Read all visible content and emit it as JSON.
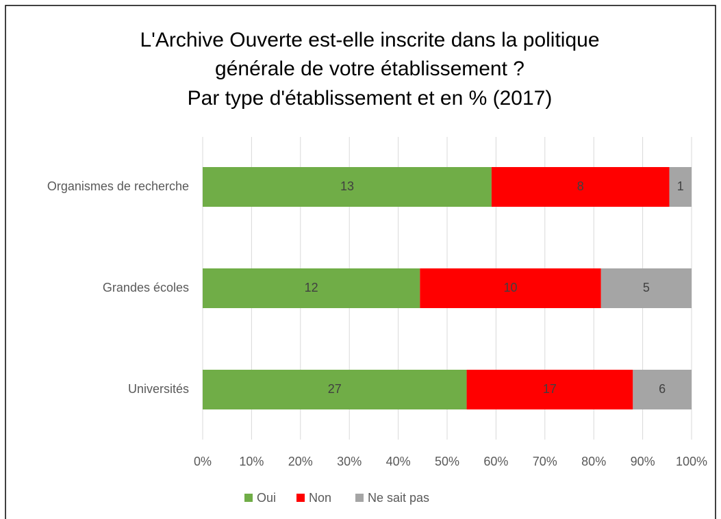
{
  "chart_data": {
    "type": "bar",
    "orientation": "horizontal",
    "stacking": "percent",
    "title": [
      "L'Archive Ouverte est-elle inscrite dans la politique",
      "générale de votre établissement ?",
      "Par type d'établissement et en % (2017)"
    ],
    "categories": [
      "Organismes de recherche",
      "Grandes écoles",
      "Universités"
    ],
    "series": [
      {
        "name": "Oui",
        "color": "#70ad47",
        "values": [
          13,
          12,
          27
        ]
      },
      {
        "name": "Non",
        "color": "#ff0000",
        "values": [
          8,
          10,
          17
        ]
      },
      {
        "name": "Ne sait pas",
        "color": "#a5a5a5",
        "values": [
          1,
          5,
          6
        ]
      }
    ],
    "xlim": [
      0,
      100
    ],
    "xticks": [
      {
        "value": 0,
        "label": "0%"
      },
      {
        "value": 10,
        "label": "10%"
      },
      {
        "value": 20,
        "label": "20%"
      },
      {
        "value": 30,
        "label": "30%"
      },
      {
        "value": 40,
        "label": "40%"
      },
      {
        "value": 50,
        "label": "50%"
      },
      {
        "value": 60,
        "label": "60%"
      },
      {
        "value": 70,
        "label": "70%"
      },
      {
        "value": 80,
        "label": "80%"
      },
      {
        "value": 90,
        "label": "90%"
      },
      {
        "value": 100,
        "label": "100%"
      }
    ],
    "grid": true,
    "legend": "bottom"
  }
}
